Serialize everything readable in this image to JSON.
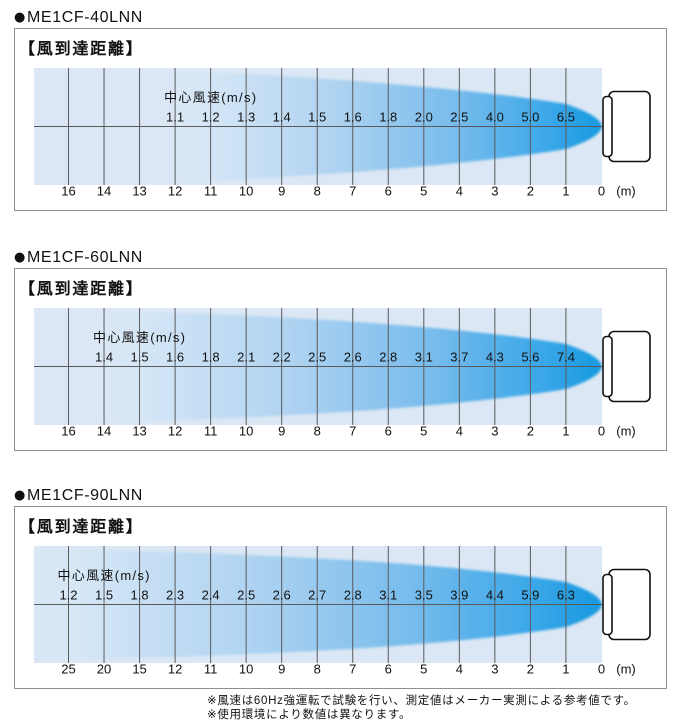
{
  "colors": {
    "text": "#111111",
    "grid_background": "#dbe7f4",
    "grid_line": "#5a5a5a",
    "panel_border": "#8f8f8f",
    "fan_outline": "#111111",
    "plume_gradient": [
      "#d7e7f6",
      "#afd3f1",
      "#78bcec",
      "#3aa7e8",
      "#1799e0"
    ]
  },
  "icons": {
    "fan_unit": "fan-unit-icon"
  },
  "panels": [
    {
      "bullet": "●",
      "model": "ME1CF-40LNN",
      "heading": "【風到達距離】",
      "speed_label": "中心風速(m/s)",
      "distance_unit": "(m)",
      "distance_ticks": [
        16,
        14,
        13,
        12,
        11,
        10,
        9,
        8,
        7,
        6,
        5,
        4,
        3,
        2,
        1,
        0
      ],
      "center_wind_speeds": [
        {
          "distance_m": 12,
          "speed_ms": "1.1"
        },
        {
          "distance_m": 11,
          "speed_ms": "1.2"
        },
        {
          "distance_m": 10,
          "speed_ms": "1.3"
        },
        {
          "distance_m": 9,
          "speed_ms": "1.4"
        },
        {
          "distance_m": 8,
          "speed_ms": "1.5"
        },
        {
          "distance_m": 7,
          "speed_ms": "1.6"
        },
        {
          "distance_m": 6,
          "speed_ms": "1.8"
        },
        {
          "distance_m": 5,
          "speed_ms": "2.0"
        },
        {
          "distance_m": 4,
          "speed_ms": "2.5"
        },
        {
          "distance_m": 3,
          "speed_ms": "4.0"
        },
        {
          "distance_m": 2,
          "speed_ms": "5.0"
        },
        {
          "distance_m": 1,
          "speed_ms": "6.5"
        }
      ]
    },
    {
      "bullet": "●",
      "model": "ME1CF-60LNN",
      "heading": "【風到達距離】",
      "speed_label": "中心風速(m/s)",
      "distance_unit": "(m)",
      "distance_ticks": [
        16,
        14,
        13,
        12,
        11,
        10,
        9,
        8,
        7,
        6,
        5,
        4,
        3,
        2,
        1,
        0
      ],
      "center_wind_speeds": [
        {
          "distance_m": 14,
          "speed_ms": "1.4"
        },
        {
          "distance_m": 13,
          "speed_ms": "1.5"
        },
        {
          "distance_m": 12,
          "speed_ms": "1.6"
        },
        {
          "distance_m": 11,
          "speed_ms": "1.8"
        },
        {
          "distance_m": 10,
          "speed_ms": "2.1"
        },
        {
          "distance_m": 9,
          "speed_ms": "2.2"
        },
        {
          "distance_m": 8,
          "speed_ms": "2.5"
        },
        {
          "distance_m": 7,
          "speed_ms": "2.6"
        },
        {
          "distance_m": 6,
          "speed_ms": "2.8"
        },
        {
          "distance_m": 5,
          "speed_ms": "3.1"
        },
        {
          "distance_m": 4,
          "speed_ms": "3.7"
        },
        {
          "distance_m": 3,
          "speed_ms": "4.3"
        },
        {
          "distance_m": 2,
          "speed_ms": "5.6"
        },
        {
          "distance_m": 1,
          "speed_ms": "7.4"
        }
      ]
    },
    {
      "bullet": "●",
      "model": "ME1CF-90LNN",
      "heading": "【風到達距離】",
      "speed_label": "中心風速(m/s)",
      "distance_unit": "(m)",
      "distance_ticks": [
        25,
        20,
        15,
        12,
        11,
        10,
        9,
        8,
        7,
        6,
        5,
        4,
        3,
        2,
        1,
        0
      ],
      "center_wind_speeds": [
        {
          "distance_m": 25,
          "speed_ms": "1.2"
        },
        {
          "distance_m": 20,
          "speed_ms": "1.5"
        },
        {
          "distance_m": 15,
          "speed_ms": "1.8"
        },
        {
          "distance_m": 12,
          "speed_ms": "2.3"
        },
        {
          "distance_m": 11,
          "speed_ms": "2.4"
        },
        {
          "distance_m": 10,
          "speed_ms": "2.5"
        },
        {
          "distance_m": 9,
          "speed_ms": "2.6"
        },
        {
          "distance_m": 8,
          "speed_ms": "2.7"
        },
        {
          "distance_m": 7,
          "speed_ms": "2.8"
        },
        {
          "distance_m": 6,
          "speed_ms": "3.1"
        },
        {
          "distance_m": 5,
          "speed_ms": "3.5"
        },
        {
          "distance_m": 4,
          "speed_ms": "3.9"
        },
        {
          "distance_m": 3,
          "speed_ms": "4.4"
        },
        {
          "distance_m": 2,
          "speed_ms": "5.9"
        },
        {
          "distance_m": 1,
          "speed_ms": "6.3"
        }
      ]
    }
  ],
  "footnotes": [
    "※風速は60Hz強運転で試験を行い、測定値はメーカー実測による参考値です。",
    "※使用環境により数値は異なります。"
  ]
}
